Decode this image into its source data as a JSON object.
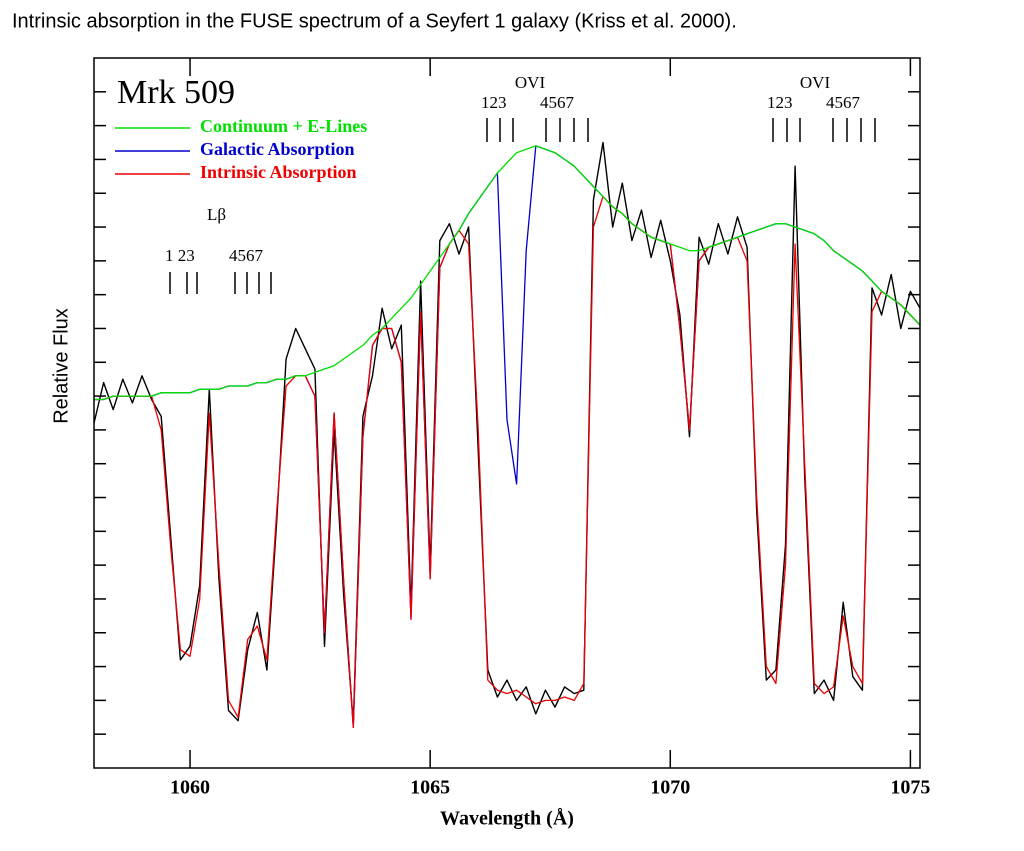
{
  "chart_data": {
    "type": "line",
    "title": "Intrinsic absorption in the FUSE spectrum of a Seyfert 1 galaxy (Kriss et al. 2000).",
    "xlabel": "Wavelength (Å)",
    "ylabel": "Relative Flux",
    "annotations": [
      "Mrk 509",
      "Lβ",
      "1 23",
      "4567",
      "OVI",
      "123",
      "4567",
      "OVI",
      "123",
      "4567"
    ],
    "xlim": [
      1058,
      1075.2
    ],
    "xticks": [
      1060,
      1065,
      1070,
      1075
    ],
    "ylim": [
      0,
      21
    ],
    "yticks": [
      1,
      2,
      3,
      4,
      5,
      6,
      7,
      8,
      9,
      10,
      11,
      12,
      13,
      14,
      15,
      16,
      17,
      18,
      19,
      20
    ],
    "x": [
      1058.0,
      1058.2,
      1058.4,
      1058.6,
      1058.8,
      1059.0,
      1059.2,
      1059.4,
      1059.6,
      1059.8,
      1060.0,
      1060.2,
      1060.4,
      1060.6,
      1060.8,
      1061.0,
      1061.2,
      1061.4,
      1061.6,
      1061.8,
      1062.0,
      1062.2,
      1062.4,
      1062.6,
      1062.8,
      1063.0,
      1063.2,
      1063.4,
      1063.6,
      1063.8,
      1064.0,
      1064.2,
      1064.4,
      1064.6,
      1064.8,
      1065.0,
      1065.2,
      1065.4,
      1065.6,
      1065.8,
      1066.0,
      1066.2,
      1066.4,
      1066.6,
      1066.8,
      1067.0,
      1067.2,
      1067.4,
      1067.6,
      1067.8,
      1068.0,
      1068.2,
      1068.4,
      1068.6,
      1068.8,
      1069.0,
      1069.2,
      1069.4,
      1069.6,
      1069.8,
      1070.0,
      1070.2,
      1070.4,
      1070.6,
      1070.8,
      1071.0,
      1071.2,
      1071.4,
      1071.6,
      1071.8,
      1072.0,
      1072.2,
      1072.4,
      1072.6,
      1072.8,
      1073.0,
      1073.2,
      1073.4,
      1073.6,
      1073.8,
      1074.0,
      1074.2,
      1074.4,
      1074.6,
      1074.8,
      1075.0,
      1075.2
    ],
    "series": [
      {
        "name": "Continuum + E-Lines",
        "color": "#00e000",
        "values": [
          10.9,
          10.9,
          11.0,
          11.0,
          11.0,
          11.0,
          11.0,
          11.1,
          11.1,
          11.1,
          11.1,
          11.2,
          11.2,
          11.2,
          11.3,
          11.3,
          11.3,
          11.4,
          11.4,
          11.5,
          11.5,
          11.6,
          11.6,
          11.7,
          11.8,
          11.9,
          12.1,
          12.3,
          12.5,
          12.8,
          13.0,
          13.3,
          13.6,
          13.9,
          14.3,
          14.7,
          15.1,
          15.5,
          15.9,
          16.4,
          16.8,
          17.2,
          17.6,
          17.9,
          18.2,
          18.3,
          18.4,
          18.3,
          18.2,
          18.0,
          17.8,
          17.5,
          17.2,
          16.9,
          16.6,
          16.4,
          16.1,
          15.9,
          15.7,
          15.6,
          15.5,
          15.4,
          15.3,
          15.3,
          15.4,
          15.5,
          15.6,
          15.7,
          15.8,
          15.9,
          16.0,
          16.1,
          16.1,
          16.0,
          15.9,
          15.8,
          15.6,
          15.3,
          15.1,
          14.9,
          14.7,
          14.4,
          14.1,
          13.9,
          13.7,
          13.4,
          13.1
        ]
      },
      {
        "name": "Galactic Absorption",
        "color": "#0000cc",
        "values": [
          10.9,
          10.9,
          11.0,
          11.0,
          11.0,
          11.0,
          11.0,
          11.1,
          11.1,
          11.1,
          11.1,
          11.2,
          11.2,
          11.2,
          11.3,
          11.3,
          11.3,
          11.4,
          11.4,
          11.5,
          11.5,
          11.6,
          11.6,
          11.0,
          4.0,
          10.5,
          5.5,
          1.2,
          9.8,
          12.5,
          13.0,
          13.0,
          12.0,
          4.4,
          13.5,
          5.6,
          14.8,
          15.5,
          15.9,
          16.4,
          16.8,
          17.2,
          17.6,
          10.3,
          8.4,
          15.3,
          18.4,
          18.3,
          18.2,
          18.0,
          17.8,
          17.5,
          17.2,
          16.9,
          16.6,
          16.4,
          16.1,
          15.9,
          15.7,
          15.6,
          15.5,
          13.0,
          10.0,
          15.0,
          15.4,
          15.5,
          15.6,
          15.7,
          15.8,
          15.9,
          16.0,
          16.1,
          16.1,
          16.0,
          15.9,
          15.8,
          15.6,
          15.3,
          15.1,
          14.9,
          14.7,
          14.4,
          14.1,
          13.9,
          13.7,
          13.4,
          13.1
        ]
      },
      {
        "name": "Intrinsic Absorption",
        "color": "#ee0000",
        "values": [
          10.9,
          10.9,
          11.0,
          11.0,
          11.0,
          11.0,
          11.0,
          10.0,
          6.5,
          3.5,
          3.3,
          5.0,
          10.5,
          6.0,
          2.0,
          1.5,
          3.8,
          4.2,
          3.2,
          7.5,
          11.3,
          11.6,
          11.6,
          11.0,
          4.0,
          10.5,
          5.5,
          1.2,
          9.8,
          12.5,
          13.0,
          13.0,
          12.0,
          4.4,
          13.5,
          5.6,
          14.8,
          15.5,
          15.9,
          15.5,
          10.0,
          2.6,
          2.3,
          2.2,
          2.3,
          2.1,
          1.9,
          2.0,
          2.0,
          2.1,
          2.0,
          2.5,
          16.0,
          16.9,
          16.6,
          16.4,
          16.1,
          15.9,
          15.7,
          15.6,
          15.5,
          13.0,
          10.0,
          15.0,
          15.4,
          15.5,
          15.6,
          15.7,
          15.0,
          8.0,
          3.0,
          2.5,
          6.0,
          15.5,
          9.0,
          2.5,
          2.2,
          2.4,
          4.5,
          3.0,
          2.5,
          13.5,
          14.1,
          13.9,
          13.7,
          13.4,
          13.1
        ]
      },
      {
        "color": "#000000",
        "values": [
          10.2,
          11.4,
          10.6,
          11.5,
          10.8,
          11.6,
          10.9,
          10.4,
          6.8,
          3.2,
          3.6,
          5.4,
          11.2,
          5.6,
          1.7,
          1.4,
          3.5,
          4.6,
          2.9,
          7.2,
          12.1,
          13.0,
          12.4,
          11.8,
          3.6,
          10.0,
          5.1,
          1.3,
          10.4,
          11.6,
          13.6,
          12.4,
          13.1,
          4.7,
          14.4,
          5.9,
          15.6,
          16.1,
          15.2,
          16.0,
          9.4,
          2.9,
          2.1,
          2.6,
          2.0,
          2.4,
          1.6,
          2.3,
          1.8,
          2.4,
          2.2,
          2.3,
          16.8,
          18.5,
          16.0,
          17.3,
          15.6,
          16.5,
          15.1,
          16.2,
          15.0,
          13.4,
          9.8,
          15.7,
          14.9,
          16.1,
          15.2,
          16.3,
          15.4,
          7.6,
          2.6,
          2.9,
          6.6,
          17.8,
          8.6,
          2.2,
          2.6,
          2.0,
          4.9,
          2.7,
          2.3,
          14.2,
          13.4,
          14.6,
          13.0,
          14.1,
          13.6
        ]
      }
    ]
  }
}
